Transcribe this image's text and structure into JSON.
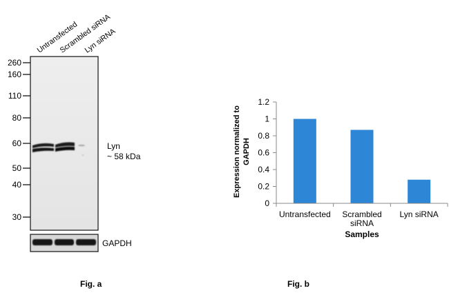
{
  "figure_a": {
    "lane_labels": [
      "Untransfected",
      "Scrambled siRNA",
      "Lyn siRNA"
    ],
    "marker_labels": [
      "260",
      "160",
      "110",
      "80",
      "60",
      "50",
      "40",
      "30"
    ],
    "band_label_line1": "Lyn",
    "band_label_line2": "~ 58 kDa",
    "loading_control_label": "GAPDH",
    "caption": "Fig. a"
  },
  "figure_b": {
    "caption": "Fig. b",
    "ylabel_line1": "Expression normalized to",
    "ylabel_line2": "GAPDH"
  },
  "chart_data": {
    "type": "bar",
    "categories": [
      [
        "Untransfected"
      ],
      [
        "Scrambled",
        "siRNA"
      ],
      [
        "Lyn  siRNA"
      ]
    ],
    "values": [
      1.0,
      0.87,
      0.28
    ],
    "title": "",
    "xlabel": "Samples",
    "ylabel": "Expression normalized to GAPDH",
    "ylim": [
      0,
      1.2
    ],
    "yticks": [
      "0",
      "0.2",
      "0.4",
      "0.6",
      "0.8",
      "1",
      "1.2"
    ],
    "bar_color": "#2E86D6",
    "grid": false,
    "legend": "none"
  }
}
